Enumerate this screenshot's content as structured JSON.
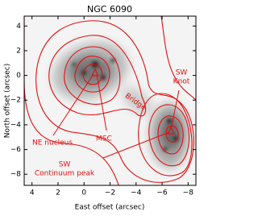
{
  "chart_data": {
    "type": "image",
    "title": "NGC 6090",
    "x_label": "East offset (arcsec)",
    "y_label": "North offset (arcsec)",
    "xlim": [
      4.6,
      -8.6
    ],
    "ylim": [
      -8.9,
      4.8
    ],
    "xticks": [
      4,
      2,
      0,
      {
        "value": -2,
        "label": "−2"
      },
      {
        "value": -4,
        "label": "−4"
      },
      {
        "value": -6,
        "label": "−6"
      },
      {
        "value": -8,
        "label": "−8"
      }
    ],
    "yticks": [
      4,
      2,
      0,
      {
        "value": -2,
        "label": "−2"
      },
      {
        "value": -4,
        "label": "−4"
      },
      {
        "value": -6,
        "label": "−6"
      },
      {
        "value": -8,
        "label": "−8"
      }
    ],
    "annotations": [
      {
        "lines": [
          "NE nucleus"
        ]
      },
      {
        "lines": [
          "MSC"
        ]
      },
      {
        "lines": [
          "Bridge"
        ]
      },
      {
        "lines": [
          "SW",
          "Knot"
        ]
      },
      {
        "lines": [
          "SW",
          "Continuum peak"
        ]
      }
    ]
  }
}
